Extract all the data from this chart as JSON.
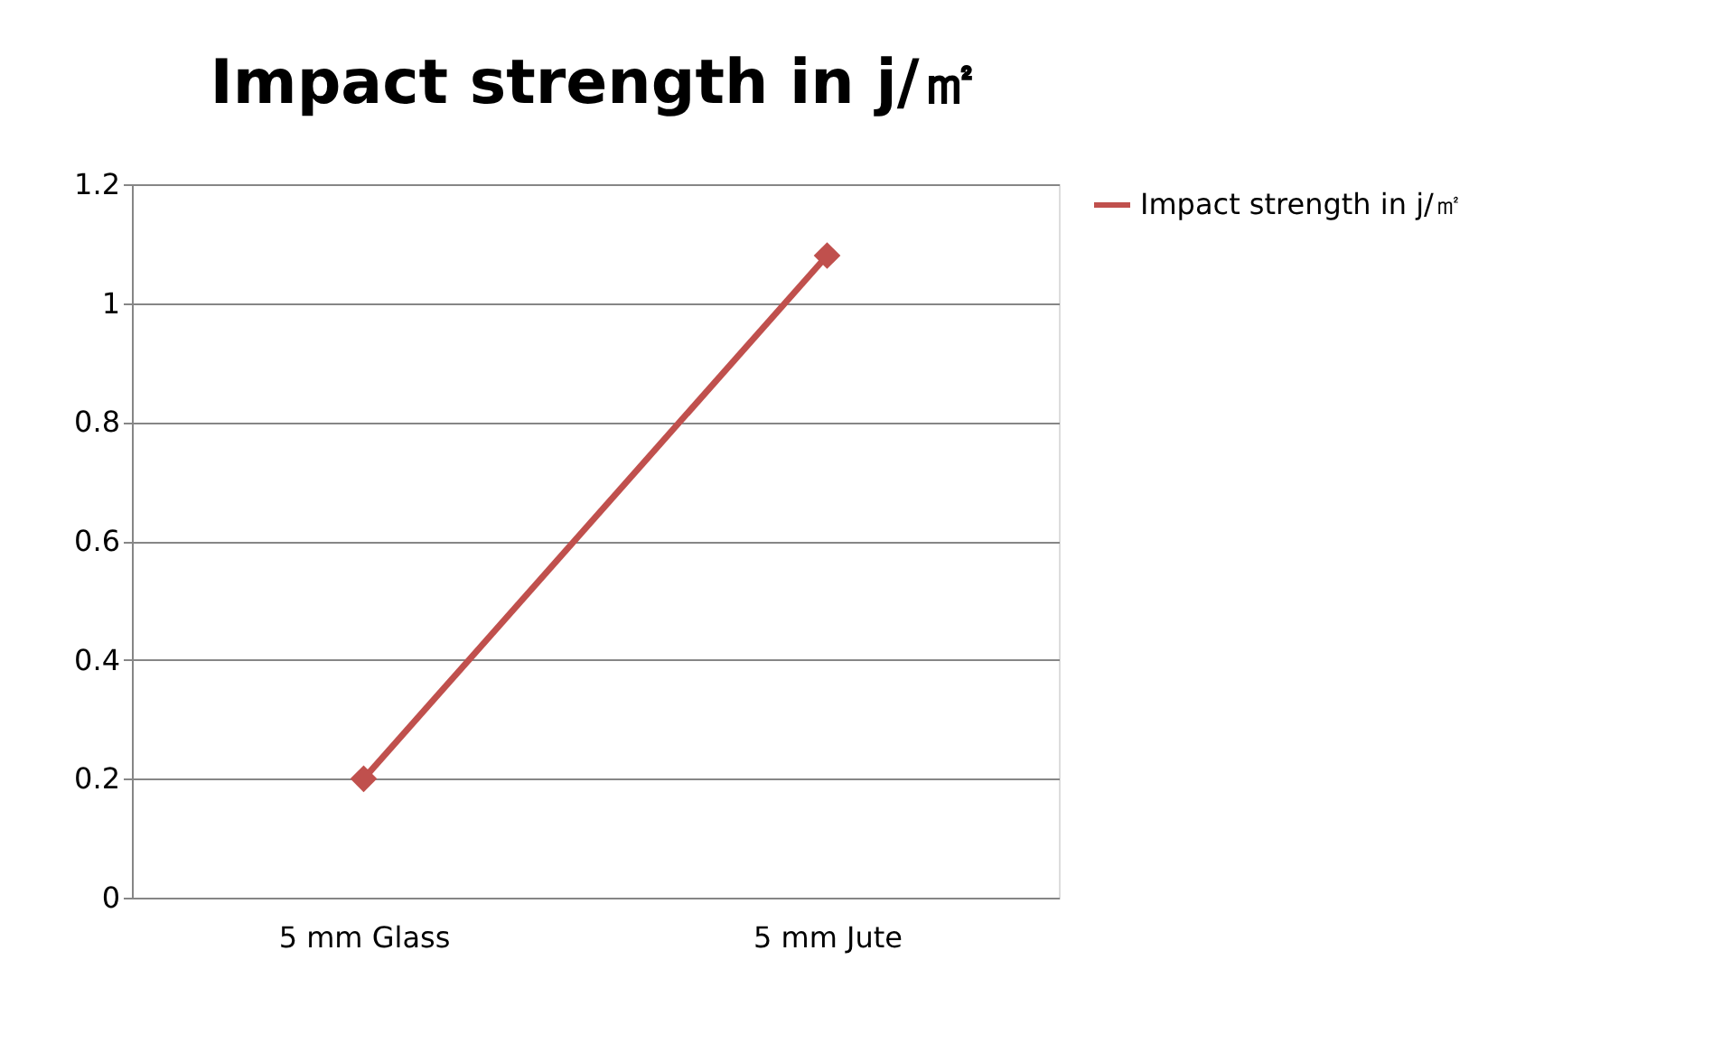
{
  "chart_data": {
    "type": "line",
    "title": "Impact strength in j/㎡",
    "categories": [
      "5 mm Glass",
      "5 mm Jute"
    ],
    "series": [
      {
        "name": "Impact strength in j/㎡",
        "color": "#c0504d",
        "values": [
          0.2,
          1.08
        ]
      }
    ],
    "ylim": [
      0,
      1.2
    ],
    "yticks": [
      0,
      0.2,
      0.4,
      0.6,
      0.8,
      1,
      1.2
    ],
    "grid": "y",
    "legend": "right",
    "marker": "diamond",
    "line_style": "solid"
  }
}
